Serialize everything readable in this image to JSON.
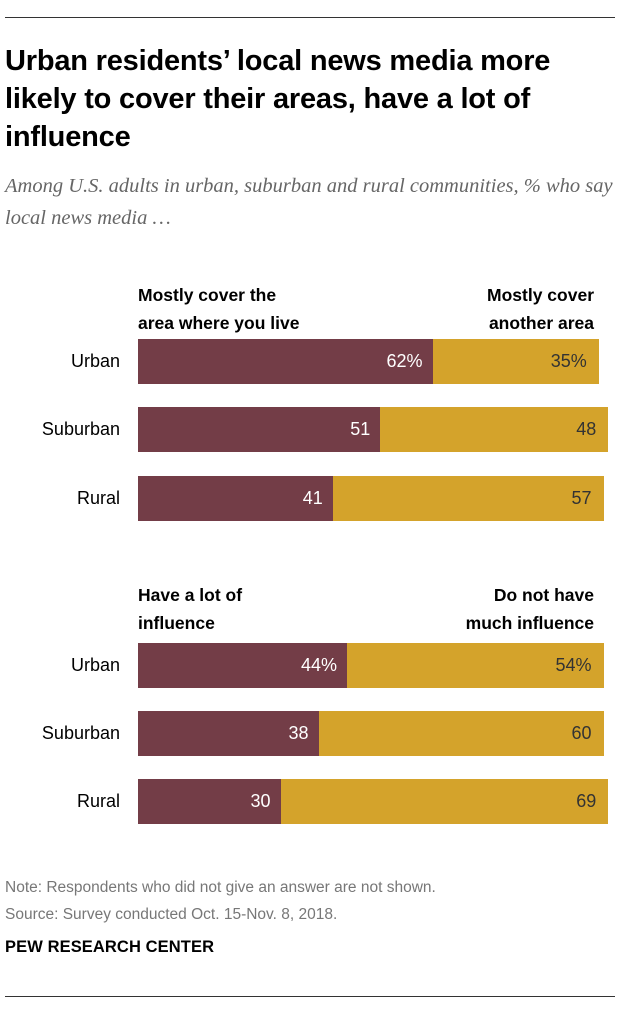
{
  "title": "Urban residents’ local news media more likely to cover their areas, have a lot of influence",
  "subtitle": "Among U.S. adults in urban, suburban and rural communities, % who say local news media …",
  "chart_data": [
    {
      "type": "bar",
      "orientation": "horizontal",
      "stacked": true,
      "categories": [
        "Urban",
        "Suburban",
        "Rural"
      ],
      "series": [
        {
          "name": "Mostly cover the\narea where you live",
          "values": [
            62,
            51,
            41
          ],
          "labels": [
            "62%",
            "51",
            "41"
          ],
          "color": "#733d47"
        },
        {
          "name": "Mostly cover\nanother area",
          "values": [
            35,
            48,
            57
          ],
          "labels": [
            "35%",
            "48",
            "57"
          ],
          "color": "#d4a32b"
        }
      ],
      "xlim": [
        0,
        100
      ]
    },
    {
      "type": "bar",
      "orientation": "horizontal",
      "stacked": true,
      "categories": [
        "Urban",
        "Suburban",
        "Rural"
      ],
      "series": [
        {
          "name": "Have a lot of\ninfluence",
          "values": [
            44,
            38,
            30
          ],
          "labels": [
            "44%",
            "38",
            "30"
          ],
          "color": "#733d47"
        },
        {
          "name": "Do not have\nmuch influence",
          "values": [
            54,
            60,
            69
          ],
          "labels": [
            "54%",
            "60",
            "69"
          ],
          "color": "#d4a32b"
        }
      ],
      "xlim": [
        0,
        100
      ]
    }
  ],
  "note": "Note: Respondents who did not give an answer are not shown.",
  "source": "Source: Survey conducted Oct. 15-Nov. 8, 2018.",
  "brand": "PEW RESEARCH CENTER"
}
